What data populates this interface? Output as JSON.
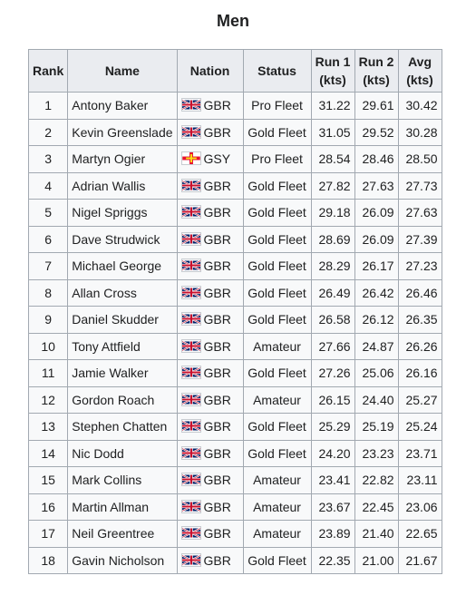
{
  "title": "Men",
  "headers": {
    "rank": "Rank",
    "name": "Name",
    "nation": "Nation",
    "status": "Status",
    "run1_line1": "Run 1",
    "run1_line2": "(kts)",
    "run2_line1": "Run 2",
    "run2_line2": "(kts)",
    "avg_line1": "Avg",
    "avg_line2": "(kts)"
  },
  "flag_icons": {
    "GBR": "union-jack-flag-icon",
    "GSY": "guernsey-flag-icon"
  },
  "rows": [
    {
      "rank": "1",
      "name": "Antony Baker",
      "nation": "GBR",
      "status": "Pro Fleet",
      "run1": "31.22",
      "run2": "29.61",
      "avg": "30.42"
    },
    {
      "rank": "2",
      "name": "Kevin Greenslade",
      "nation": "GBR",
      "status": "Gold Fleet",
      "run1": "31.05",
      "run2": "29.52",
      "avg": "30.28"
    },
    {
      "rank": "3",
      "name": "Martyn Ogier",
      "nation": "GSY",
      "status": "Pro Fleet",
      "run1": "28.54",
      "run2": "28.46",
      "avg": "28.50"
    },
    {
      "rank": "4",
      "name": "Adrian Wallis",
      "nation": "GBR",
      "status": "Gold Fleet",
      "run1": "27.82",
      "run2": "27.63",
      "avg": "27.73"
    },
    {
      "rank": "5",
      "name": "Nigel Spriggs",
      "nation": "GBR",
      "status": "Gold Fleet",
      "run1": "29.18",
      "run2": "26.09",
      "avg": "27.63"
    },
    {
      "rank": "6",
      "name": "Dave Strudwick",
      "nation": "GBR",
      "status": "Gold Fleet",
      "run1": "28.69",
      "run2": "26.09",
      "avg": "27.39"
    },
    {
      "rank": "7",
      "name": "Michael George",
      "nation": "GBR",
      "status": "Gold Fleet",
      "run1": "28.29",
      "run2": "26.17",
      "avg": "27.23"
    },
    {
      "rank": "8",
      "name": "Allan Cross",
      "nation": "GBR",
      "status": "Gold Fleet",
      "run1": "26.49",
      "run2": "26.42",
      "avg": "26.46"
    },
    {
      "rank": "9",
      "name": "Daniel Skudder",
      "nation": "GBR",
      "status": "Gold Fleet",
      "run1": "26.58",
      "run2": "26.12",
      "avg": "26.35"
    },
    {
      "rank": "10",
      "name": "Tony Attfield",
      "nation": "GBR",
      "status": "Amateur",
      "run1": "27.66",
      "run2": "24.87",
      "avg": "26.26"
    },
    {
      "rank": "11",
      "name": "Jamie Walker",
      "nation": "GBR",
      "status": "Gold Fleet",
      "run1": "27.26",
      "run2": "25.06",
      "avg": "26.16"
    },
    {
      "rank": "12",
      "name": "Gordon Roach",
      "nation": "GBR",
      "status": "Amateur",
      "run1": "26.15",
      "run2": "24.40",
      "avg": "25.27"
    },
    {
      "rank": "13",
      "name": "Stephen Chatten",
      "nation": "GBR",
      "status": "Gold Fleet",
      "run1": "25.29",
      "run2": "25.19",
      "avg": "25.24"
    },
    {
      "rank": "14",
      "name": "Nic Dodd",
      "nation": "GBR",
      "status": "Gold Fleet",
      "run1": "24.20",
      "run2": "23.23",
      "avg": "23.71"
    },
    {
      "rank": "15",
      "name": "Mark Collins",
      "nation": "GBR",
      "status": "Amateur",
      "run1": "23.41",
      "run2": "22.82",
      "avg": "23.11"
    },
    {
      "rank": "16",
      "name": "Martin Allman",
      "nation": "GBR",
      "status": "Amateur",
      "run1": "23.67",
      "run2": "22.45",
      "avg": "23.06"
    },
    {
      "rank": "17",
      "name": "Neil Greentree",
      "nation": "GBR",
      "status": "Amateur",
      "run1": "23.89",
      "run2": "21.40",
      "avg": "22.65"
    },
    {
      "rank": "18",
      "name": "Gavin Nicholson",
      "nation": "GBR",
      "status": "Gold Fleet",
      "run1": "22.35",
      "run2": "21.00",
      "avg": "21.67"
    }
  ]
}
